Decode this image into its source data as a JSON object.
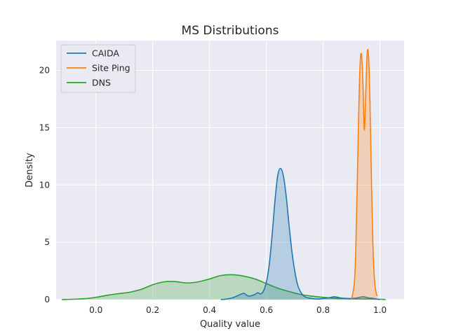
{
  "chart_data": {
    "type": "area",
    "title": "MS Distributions",
    "xlabel": "Quality value",
    "ylabel": "Density",
    "xlim": [
      -0.14,
      1.085
    ],
    "ylim": [
      0,
      22.6
    ],
    "xticks": [
      "0.0",
      "0.2",
      "0.4",
      "0.6",
      "0.8",
      "1.0"
    ],
    "yticks": [
      "0",
      "5",
      "10",
      "15",
      "20"
    ],
    "grid": true,
    "legend_position": "top-left",
    "series": [
      {
        "name": "CAIDA",
        "color": "#1f77b4",
        "x": [
          0.44,
          0.46,
          0.48,
          0.5,
          0.52,
          0.53,
          0.54,
          0.56,
          0.57,
          0.58,
          0.59,
          0.6,
          0.61,
          0.62,
          0.63,
          0.64,
          0.65,
          0.66,
          0.67,
          0.68,
          0.69,
          0.7,
          0.71,
          0.72,
          0.73,
          0.74,
          0.76,
          0.78,
          0.8,
          0.82,
          0.84,
          0.86,
          0.88,
          0.9,
          0.92,
          0.94,
          0.96,
          0.98,
          1.0
        ],
        "y": [
          0.0,
          0.05,
          0.15,
          0.35,
          0.55,
          0.4,
          0.3,
          0.45,
          0.6,
          0.5,
          0.75,
          1.5,
          3.0,
          5.5,
          8.5,
          10.8,
          11.45,
          10.8,
          9.0,
          6.5,
          4.2,
          2.5,
          1.3,
          0.7,
          0.35,
          0.2,
          0.1,
          0.05,
          0.1,
          0.15,
          0.25,
          0.15,
          0.1,
          0.1,
          0.15,
          0.25,
          0.15,
          0.1,
          0.0
        ]
      },
      {
        "name": "Site Ping",
        "color": "#ff7f0e",
        "x": [
          0.9,
          0.91,
          0.915,
          0.92,
          0.925,
          0.93,
          0.935,
          0.94,
          0.945,
          0.95,
          0.955,
          0.96,
          0.965,
          0.97,
          0.975,
          0.98,
          0.985,
          0.99
        ],
        "y": [
          0.0,
          1.5,
          4.5,
          10.0,
          16.0,
          20.5,
          21.4,
          19.0,
          14.8,
          18.0,
          21.5,
          21.2,
          17.0,
          10.5,
          5.0,
          2.0,
          0.8,
          0.3
        ]
      },
      {
        "name": "DNS",
        "color": "#2ca02c",
        "x": [
          -0.12,
          -0.08,
          -0.04,
          0.0,
          0.04,
          0.08,
          0.12,
          0.16,
          0.2,
          0.24,
          0.28,
          0.32,
          0.36,
          0.4,
          0.44,
          0.48,
          0.52,
          0.56,
          0.6,
          0.64,
          0.68,
          0.72,
          0.76,
          0.8,
          0.84,
          0.88,
          0.92,
          0.96,
          1.0,
          1.02
        ],
        "y": [
          0.0,
          0.03,
          0.08,
          0.2,
          0.38,
          0.52,
          0.65,
          0.9,
          1.3,
          1.55,
          1.57,
          1.45,
          1.55,
          1.8,
          2.1,
          2.17,
          2.05,
          1.8,
          1.4,
          1.0,
          0.7,
          0.45,
          0.3,
          0.2,
          0.12,
          0.08,
          0.06,
          0.05,
          0.03,
          0.0
        ]
      }
    ]
  }
}
